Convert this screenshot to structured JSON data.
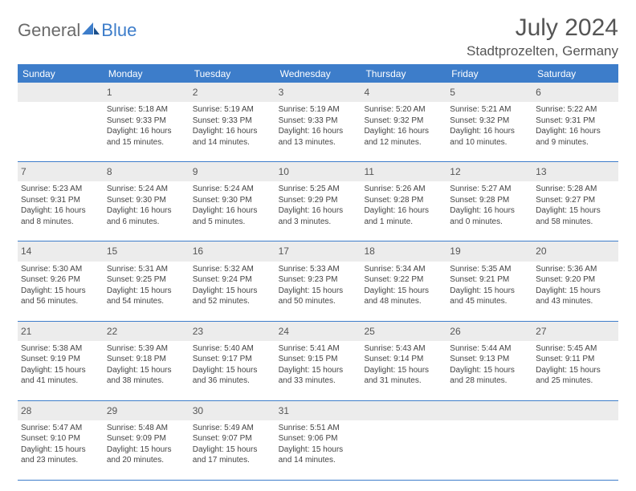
{
  "logo": {
    "general": "General",
    "blue": "Blue"
  },
  "header": {
    "month_title": "July 2024",
    "location": "Stadtprozelten, Germany"
  },
  "dow": [
    "Sunday",
    "Monday",
    "Tuesday",
    "Wednesday",
    "Thursday",
    "Friday",
    "Saturday"
  ],
  "colors": {
    "header_bg": "#3d7dca",
    "daynum_bg": "#ececec",
    "text": "#444444",
    "title": "#555555",
    "bg": "#ffffff"
  },
  "fonts": {
    "month_title_pt": 30,
    "location_pt": 17,
    "dow_pt": 12,
    "daynum_pt": 12,
    "body_pt": 10
  },
  "weeks": [
    [
      {
        "day": "",
        "lines": []
      },
      {
        "day": "1",
        "lines": [
          "Sunrise: 5:18 AM",
          "Sunset: 9:33 PM",
          "Daylight: 16 hours and 15 minutes."
        ]
      },
      {
        "day": "2",
        "lines": [
          "Sunrise: 5:19 AM",
          "Sunset: 9:33 PM",
          "Daylight: 16 hours and 14 minutes."
        ]
      },
      {
        "day": "3",
        "lines": [
          "Sunrise: 5:19 AM",
          "Sunset: 9:33 PM",
          "Daylight: 16 hours and 13 minutes."
        ]
      },
      {
        "day": "4",
        "lines": [
          "Sunrise: 5:20 AM",
          "Sunset: 9:32 PM",
          "Daylight: 16 hours and 12 minutes."
        ]
      },
      {
        "day": "5",
        "lines": [
          "Sunrise: 5:21 AM",
          "Sunset: 9:32 PM",
          "Daylight: 16 hours and 10 minutes."
        ]
      },
      {
        "day": "6",
        "lines": [
          "Sunrise: 5:22 AM",
          "Sunset: 9:31 PM",
          "Daylight: 16 hours and 9 minutes."
        ]
      }
    ],
    [
      {
        "day": "7",
        "lines": [
          "Sunrise: 5:23 AM",
          "Sunset: 9:31 PM",
          "Daylight: 16 hours and 8 minutes."
        ]
      },
      {
        "day": "8",
        "lines": [
          "Sunrise: 5:24 AM",
          "Sunset: 9:30 PM",
          "Daylight: 16 hours and 6 minutes."
        ]
      },
      {
        "day": "9",
        "lines": [
          "Sunrise: 5:24 AM",
          "Sunset: 9:30 PM",
          "Daylight: 16 hours and 5 minutes."
        ]
      },
      {
        "day": "10",
        "lines": [
          "Sunrise: 5:25 AM",
          "Sunset: 9:29 PM",
          "Daylight: 16 hours and 3 minutes."
        ]
      },
      {
        "day": "11",
        "lines": [
          "Sunrise: 5:26 AM",
          "Sunset: 9:28 PM",
          "Daylight: 16 hours and 1 minute."
        ]
      },
      {
        "day": "12",
        "lines": [
          "Sunrise: 5:27 AM",
          "Sunset: 9:28 PM",
          "Daylight: 16 hours and 0 minutes."
        ]
      },
      {
        "day": "13",
        "lines": [
          "Sunrise: 5:28 AM",
          "Sunset: 9:27 PM",
          "Daylight: 15 hours and 58 minutes."
        ]
      }
    ],
    [
      {
        "day": "14",
        "lines": [
          "Sunrise: 5:30 AM",
          "Sunset: 9:26 PM",
          "Daylight: 15 hours and 56 minutes."
        ]
      },
      {
        "day": "15",
        "lines": [
          "Sunrise: 5:31 AM",
          "Sunset: 9:25 PM",
          "Daylight: 15 hours and 54 minutes."
        ]
      },
      {
        "day": "16",
        "lines": [
          "Sunrise: 5:32 AM",
          "Sunset: 9:24 PM",
          "Daylight: 15 hours and 52 minutes."
        ]
      },
      {
        "day": "17",
        "lines": [
          "Sunrise: 5:33 AM",
          "Sunset: 9:23 PM",
          "Daylight: 15 hours and 50 minutes."
        ]
      },
      {
        "day": "18",
        "lines": [
          "Sunrise: 5:34 AM",
          "Sunset: 9:22 PM",
          "Daylight: 15 hours and 48 minutes."
        ]
      },
      {
        "day": "19",
        "lines": [
          "Sunrise: 5:35 AM",
          "Sunset: 9:21 PM",
          "Daylight: 15 hours and 45 minutes."
        ]
      },
      {
        "day": "20",
        "lines": [
          "Sunrise: 5:36 AM",
          "Sunset: 9:20 PM",
          "Daylight: 15 hours and 43 minutes."
        ]
      }
    ],
    [
      {
        "day": "21",
        "lines": [
          "Sunrise: 5:38 AM",
          "Sunset: 9:19 PM",
          "Daylight: 15 hours and 41 minutes."
        ]
      },
      {
        "day": "22",
        "lines": [
          "Sunrise: 5:39 AM",
          "Sunset: 9:18 PM",
          "Daylight: 15 hours and 38 minutes."
        ]
      },
      {
        "day": "23",
        "lines": [
          "Sunrise: 5:40 AM",
          "Sunset: 9:17 PM",
          "Daylight: 15 hours and 36 minutes."
        ]
      },
      {
        "day": "24",
        "lines": [
          "Sunrise: 5:41 AM",
          "Sunset: 9:15 PM",
          "Daylight: 15 hours and 33 minutes."
        ]
      },
      {
        "day": "25",
        "lines": [
          "Sunrise: 5:43 AM",
          "Sunset: 9:14 PM",
          "Daylight: 15 hours and 31 minutes."
        ]
      },
      {
        "day": "26",
        "lines": [
          "Sunrise: 5:44 AM",
          "Sunset: 9:13 PM",
          "Daylight: 15 hours and 28 minutes."
        ]
      },
      {
        "day": "27",
        "lines": [
          "Sunrise: 5:45 AM",
          "Sunset: 9:11 PM",
          "Daylight: 15 hours and 25 minutes."
        ]
      }
    ],
    [
      {
        "day": "28",
        "lines": [
          "Sunrise: 5:47 AM",
          "Sunset: 9:10 PM",
          "Daylight: 15 hours and 23 minutes."
        ]
      },
      {
        "day": "29",
        "lines": [
          "Sunrise: 5:48 AM",
          "Sunset: 9:09 PM",
          "Daylight: 15 hours and 20 minutes."
        ]
      },
      {
        "day": "30",
        "lines": [
          "Sunrise: 5:49 AM",
          "Sunset: 9:07 PM",
          "Daylight: 15 hours and 17 minutes."
        ]
      },
      {
        "day": "31",
        "lines": [
          "Sunrise: 5:51 AM",
          "Sunset: 9:06 PM",
          "Daylight: 15 hours and 14 minutes."
        ]
      },
      {
        "day": "",
        "lines": []
      },
      {
        "day": "",
        "lines": []
      },
      {
        "day": "",
        "lines": []
      }
    ]
  ]
}
